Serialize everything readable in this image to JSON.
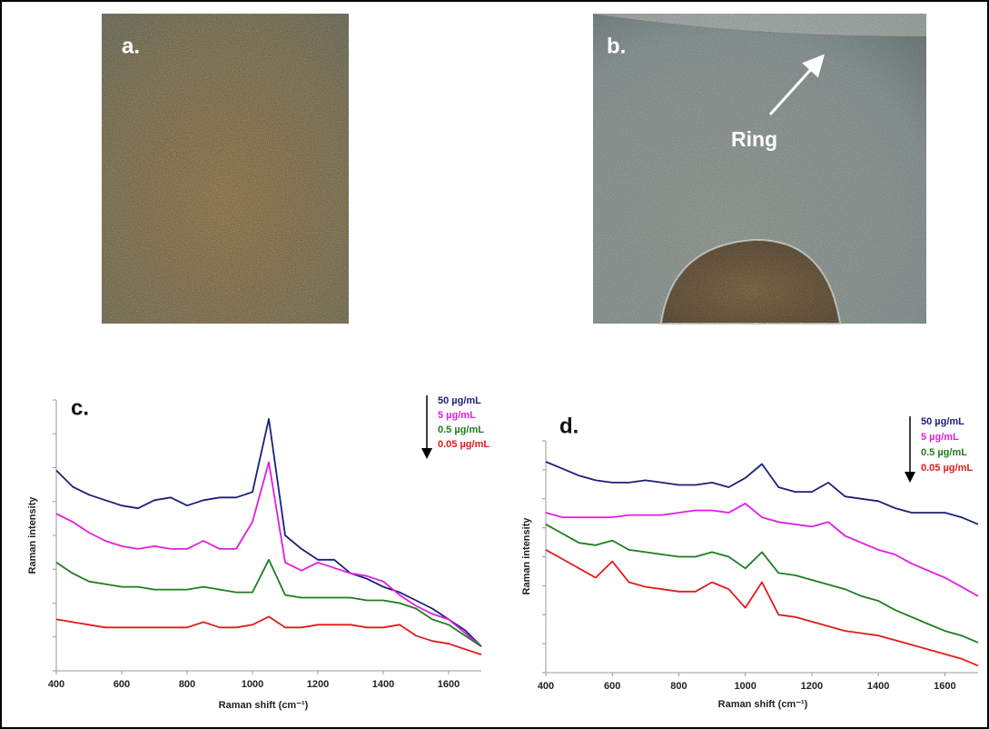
{
  "figure": {
    "panels": [
      {
        "label": "a."
      },
      {
        "label": "b.",
        "annotation": "Ring"
      }
    ]
  },
  "chart_data": [
    {
      "type": "line",
      "panel_label": "c.",
      "xlabel": "Raman shift (cm⁻¹)",
      "ylabel": "Raman intensity",
      "x": [
        400,
        450,
        500,
        550,
        600,
        650,
        700,
        750,
        800,
        850,
        900,
        950,
        1000,
        1050,
        1100,
        1150,
        1200,
        1250,
        1300,
        1350,
        1400,
        1450,
        1500,
        1550,
        1600,
        1650,
        1700
      ],
      "xlim": [
        400,
        1700
      ],
      "xticks": [
        400,
        600,
        800,
        1000,
        1200,
        1400,
        1600
      ],
      "ylim": [
        0,
        10
      ],
      "yticks": [
        0,
        1.25,
        2.5,
        3.75,
        5,
        6.25,
        7.5,
        8.75,
        10
      ],
      "series": [
        {
          "name": "50 µg/mL",
          "color": "#1c1f7a",
          "values": [
            7.4,
            6.8,
            6.5,
            6.3,
            6.1,
            6.0,
            6.3,
            6.4,
            6.1,
            6.3,
            6.4,
            6.4,
            6.6,
            9.3,
            5.0,
            4.5,
            4.1,
            4.1,
            3.6,
            3.4,
            3.1,
            2.9,
            2.6,
            2.3,
            1.9,
            1.5,
            0.9
          ]
        },
        {
          "name": "5 µg/mL",
          "color": "#e21de2",
          "values": [
            5.8,
            5.5,
            5.1,
            4.8,
            4.6,
            4.5,
            4.6,
            4.5,
            4.5,
            4.8,
            4.5,
            4.5,
            5.5,
            7.7,
            4.0,
            3.7,
            4.0,
            3.8,
            3.6,
            3.5,
            3.3,
            2.8,
            2.4,
            2.1,
            1.9,
            1.4,
            0.9
          ]
        },
        {
          "name": "0.5 µg/mL",
          "color": "#1e7d1e",
          "values": [
            4.0,
            3.6,
            3.3,
            3.2,
            3.1,
            3.1,
            3.0,
            3.0,
            3.0,
            3.1,
            3.0,
            2.9,
            2.9,
            4.1,
            2.8,
            2.7,
            2.7,
            2.7,
            2.7,
            2.6,
            2.6,
            2.5,
            2.3,
            1.9,
            1.7,
            1.3,
            0.9
          ]
        },
        {
          "name": "0.05 µg/mL",
          "color": "#e21b1b",
          "values": [
            1.9,
            1.8,
            1.7,
            1.6,
            1.6,
            1.6,
            1.6,
            1.6,
            1.6,
            1.8,
            1.6,
            1.6,
            1.7,
            2.0,
            1.6,
            1.6,
            1.7,
            1.7,
            1.7,
            1.6,
            1.6,
            1.7,
            1.3,
            1.1,
            1.0,
            0.8,
            0.6
          ]
        }
      ]
    },
    {
      "type": "line",
      "panel_label": "d.",
      "xlabel": "Raman shift (cm⁻¹)",
      "ylabel": "Raman intensity",
      "x": [
        400,
        450,
        500,
        550,
        600,
        650,
        700,
        750,
        800,
        850,
        900,
        950,
        1000,
        1050,
        1100,
        1150,
        1200,
        1250,
        1300,
        1350,
        1400,
        1450,
        1500,
        1550,
        1600,
        1650,
        1700
      ],
      "xlim": [
        400,
        1700
      ],
      "xticks": [
        400,
        600,
        800,
        1000,
        1200,
        1400,
        1600
      ],
      "ylim": [
        0,
        10
      ],
      "yticks": [
        0,
        1.25,
        2.5,
        3.75,
        5,
        6.25,
        7.5,
        8.75,
        10
      ],
      "series": [
        {
          "name": "50 µg/mL",
          "color": "#1c1f7a",
          "values": [
            9.1,
            8.8,
            8.5,
            8.3,
            8.2,
            8.2,
            8.3,
            8.2,
            8.1,
            8.1,
            8.2,
            8.0,
            8.4,
            9.0,
            8.0,
            7.8,
            7.8,
            8.2,
            7.6,
            7.5,
            7.4,
            7.1,
            6.9,
            6.9,
            6.9,
            6.7,
            6.4
          ]
        },
        {
          "name": "5 µg/mL",
          "color": "#e21de2",
          "values": [
            6.9,
            6.7,
            6.7,
            6.7,
            6.7,
            6.8,
            6.8,
            6.8,
            6.9,
            7.0,
            7.0,
            6.9,
            7.3,
            6.7,
            6.5,
            6.4,
            6.3,
            6.5,
            5.9,
            5.6,
            5.3,
            5.1,
            4.7,
            4.4,
            4.1,
            3.7,
            3.3
          ]
        },
        {
          "name": "0.5 µg/mL",
          "color": "#1e7d1e",
          "values": [
            6.4,
            6.0,
            5.6,
            5.5,
            5.7,
            5.3,
            5.2,
            5.1,
            5.0,
            5.0,
            5.2,
            5.0,
            4.5,
            5.2,
            4.3,
            4.2,
            4.0,
            3.8,
            3.6,
            3.3,
            3.1,
            2.7,
            2.4,
            2.1,
            1.8,
            1.6,
            1.3
          ]
        },
        {
          "name": "0.05 µg/mL",
          "color": "#e21b1b",
          "values": [
            5.3,
            4.9,
            4.5,
            4.1,
            4.8,
            3.9,
            3.7,
            3.6,
            3.5,
            3.5,
            3.9,
            3.6,
            2.8,
            3.9,
            2.5,
            2.4,
            2.2,
            2.0,
            1.8,
            1.7,
            1.6,
            1.4,
            1.2,
            1.0,
            0.8,
            0.6,
            0.3
          ]
        }
      ]
    }
  ]
}
